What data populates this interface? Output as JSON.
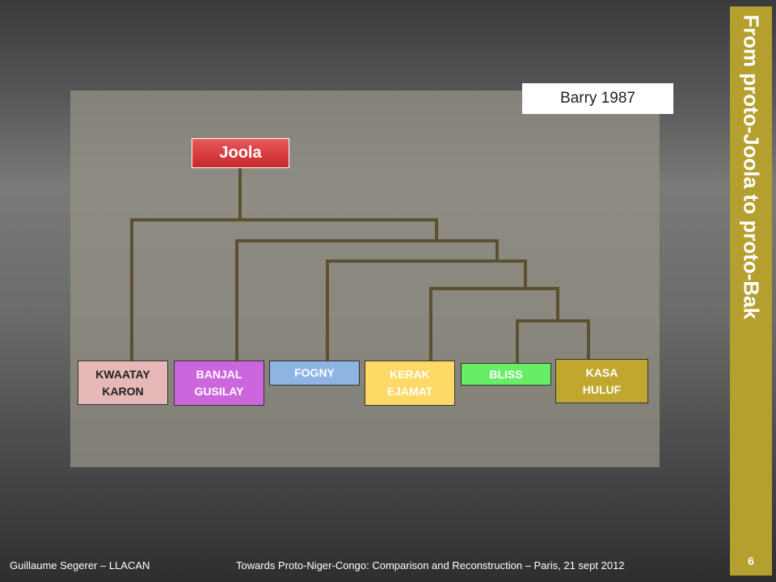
{
  "header": {
    "title": "From proto-Joola to proto-Bak",
    "source": "Barry 1987"
  },
  "root": {
    "label": "Joola"
  },
  "nodes": [
    {
      "lines": [
        "KWAATAY",
        "KARON"
      ]
    },
    {
      "lines": [
        "BANJAL",
        "GUSILAY"
      ]
    },
    {
      "lines": [
        "FOGNY"
      ]
    },
    {
      "lines": [
        "KERAK",
        "EJAMAT"
      ]
    },
    {
      "lines": [
        "BLISS"
      ]
    },
    {
      "lines": [
        "KASA",
        "HULUF"
      ]
    }
  ],
  "footer": {
    "author": "Guillaume Segerer – LLACAN",
    "event": "Towards Proto-Niger-Congo: Comparison and Reconstruction – Paris, 21 sept 2012",
    "page": 6
  }
}
